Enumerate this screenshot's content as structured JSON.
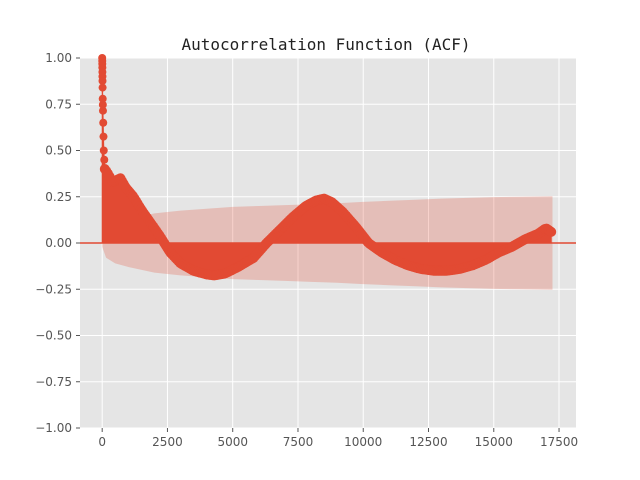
{
  "chart_data": {
    "type": "scatter",
    "title": "Autocorrelation Function (ACF)",
    "xlabel": "",
    "ylabel": "",
    "xlim": [
      -850,
      18150
    ],
    "ylim": [
      -1.0,
      1.0
    ],
    "grid": true,
    "x_ticks": [
      0,
      2500,
      5000,
      7500,
      10000,
      12500,
      15000,
      17500
    ],
    "x_tick_labels": [
      "0",
      "2500",
      "5000",
      "7500",
      "10000",
      "12500",
      "15000",
      "17500"
    ],
    "y_ticks": [
      1.0,
      0.75,
      0.5,
      0.25,
      0.0,
      -0.25,
      -0.5,
      -0.75,
      -1.0
    ],
    "y_tick_labels": [
      "1.00",
      "0.75",
      "0.50",
      "0.25",
      "0.00",
      "−0.25",
      "−0.50",
      "−0.75",
      "−1.00"
    ],
    "acf_curve": {
      "x": [
        0,
        5,
        10,
        20,
        40,
        60,
        100,
        200,
        400,
        700,
        900,
        1200,
        1500,
        1800,
        2200,
        2600,
        3000,
        3500,
        4000,
        4300,
        4700,
        5200,
        5800,
        6300,
        6800,
        7300,
        7800,
        8200,
        8500,
        8800,
        9200,
        9700,
        10200,
        10700,
        11200,
        11700,
        12200,
        12700,
        13200,
        13700,
        14200,
        14700,
        15200,
        15700,
        16200,
        16700,
        17000,
        17200
      ],
      "y": [
        1.0,
        0.96,
        0.9,
        0.78,
        0.65,
        0.5,
        0.4,
        0.38,
        0.33,
        0.35,
        0.3,
        0.25,
        0.18,
        0.12,
        0.04,
        -0.05,
        -0.11,
        -0.15,
        -0.17,
        -0.175,
        -0.165,
        -0.13,
        -0.08,
        0.0,
        0.07,
        0.14,
        0.2,
        0.23,
        0.24,
        0.22,
        0.17,
        0.09,
        0.0,
        -0.05,
        -0.09,
        -0.12,
        -0.14,
        -0.15,
        -0.15,
        -0.14,
        -0.12,
        -0.09,
        -0.05,
        -0.02,
        0.02,
        0.05,
        0.08,
        0.06
      ],
      "color": "#E24A33"
    },
    "confidence_band": {
      "x": [
        0,
        150,
        500,
        1000,
        2000,
        3000,
        4000,
        5000,
        6000,
        7000,
        8000,
        9000,
        10000,
        11000,
        12000,
        13000,
        14000,
        15000,
        16000,
        17000,
        17250
      ],
      "upper": [
        0.02,
        0.08,
        0.11,
        0.13,
        0.16,
        0.175,
        0.185,
        0.195,
        0.2,
        0.205,
        0.21,
        0.215,
        0.222,
        0.228,
        0.234,
        0.24,
        0.244,
        0.248,
        0.25,
        0.252,
        0.253
      ],
      "lower": [
        -0.02,
        -0.08,
        -0.11,
        -0.13,
        -0.16,
        -0.175,
        -0.185,
        -0.195,
        -0.2,
        -0.205,
        -0.21,
        -0.215,
        -0.222,
        -0.228,
        -0.234,
        -0.24,
        -0.244,
        -0.248,
        -0.25,
        -0.252,
        -0.253
      ],
      "color": "#E24A33"
    },
    "zero_line": {
      "y": 0.0,
      "color": "#E24A33"
    },
    "colors": {
      "axes_background": "#E5E5E5",
      "grid": "#FFFFFF",
      "figure_background": "#FFFFFF"
    }
  }
}
